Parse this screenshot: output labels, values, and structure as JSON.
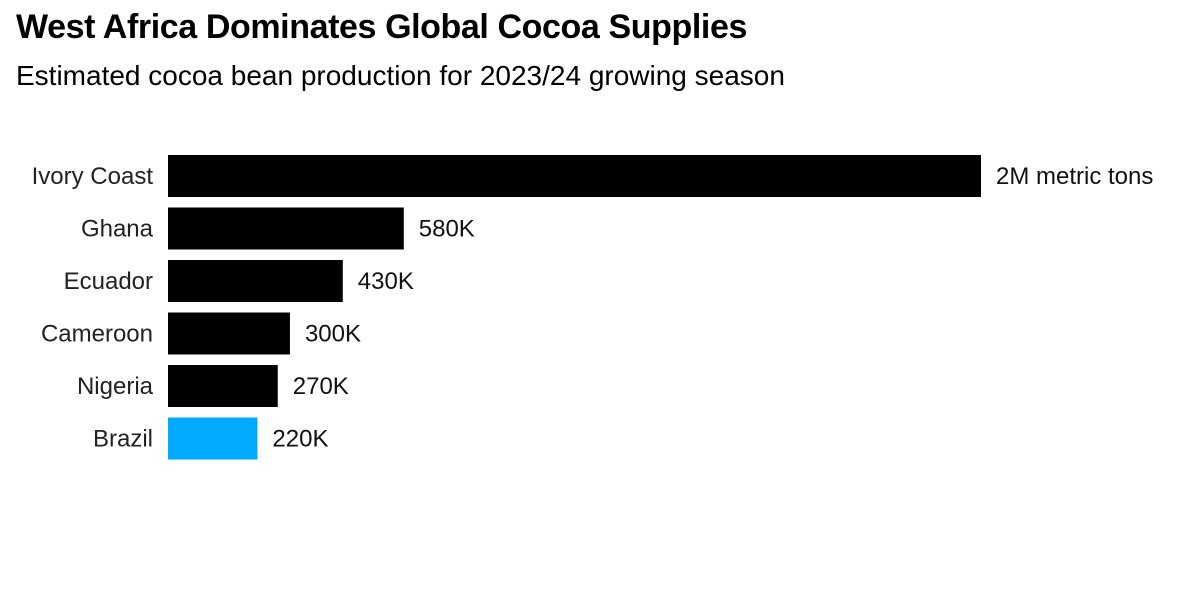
{
  "header": {
    "title": "West Africa Dominates Global Cocoa Supplies",
    "subtitle": "Estimated cocoa bean production for 2023/24 growing season"
  },
  "colors": {
    "bar_default": "#000000",
    "bar_highlight": "#00aaff"
  },
  "chart_data": {
    "type": "bar",
    "orientation": "horizontal",
    "title": "West Africa Dominates Global Cocoa Supplies",
    "subtitle": "Estimated cocoa bean production for 2023/24 growing season",
    "categories": [
      "Ivory Coast",
      "Ghana",
      "Ecuador",
      "Cameroon",
      "Nigeria",
      "Brazil"
    ],
    "values": [
      2000000,
      580000,
      430000,
      300000,
      270000,
      220000
    ],
    "value_labels": [
      "2M metric tons",
      "580K",
      "430K",
      "300K",
      "270K",
      "220K"
    ],
    "highlight": "Brazil",
    "units": "metric tons",
    "xlim": [
      0,
      2000000
    ],
    "grid": false,
    "legend": "none"
  }
}
